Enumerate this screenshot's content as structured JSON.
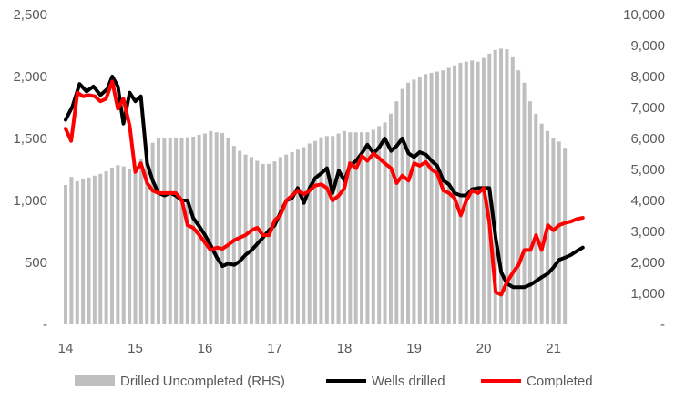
{
  "chart_data": {
    "type": "bar+line",
    "title": "",
    "x_ticks": [
      "14",
      "15",
      "16",
      "17",
      "18",
      "19",
      "20",
      "21"
    ],
    "x_range": [
      2014.0,
      2021.75
    ],
    "y_left": {
      "ticks": [
        "-",
        "500",
        "1,000",
        "1,500",
        "2,000",
        "2,500"
      ],
      "range": [
        0,
        2500
      ]
    },
    "y_right": {
      "ticks": [
        "-",
        "1,000",
        "2,000",
        "3,000",
        "4,000",
        "5,000",
        "6,000",
        "7,000",
        "8,000",
        "9,000",
        "10,000"
      ],
      "range": [
        0,
        10000
      ]
    },
    "grid": false,
    "legend_position": "bottom",
    "series": [
      {
        "name": "Drilled Uncompleted (RHS)",
        "kind": "bar",
        "axis": "right",
        "color": "#bfbfbf",
        "x_start": 2014.0,
        "x_step": 0.0833,
        "values": [
          4500,
          4760,
          4620,
          4700,
          4740,
          4800,
          4860,
          4940,
          5060,
          5140,
          5100,
          5020,
          5100,
          5340,
          5600,
          5860,
          6000,
          6000,
          6000,
          6000,
          6000,
          6040,
          6060,
          6120,
          6160,
          6240,
          6200,
          6180,
          6000,
          5760,
          5600,
          5480,
          5400,
          5280,
          5180,
          5180,
          5260,
          5400,
          5480,
          5560,
          5640,
          5720,
          5840,
          5920,
          6040,
          6080,
          6080,
          6160,
          6240,
          6200,
          6200,
          6200,
          6200,
          6280,
          6400,
          6520,
          6800,
          7200,
          7600,
          7800,
          7900,
          8000,
          8080,
          8120,
          8160,
          8200,
          8280,
          8360,
          8440,
          8480,
          8520,
          8480,
          8600,
          8740,
          8860,
          8900,
          8880,
          8620,
          8200,
          7800,
          7200,
          6800,
          6480,
          6240,
          6000,
          5900,
          5700
        ]
      },
      {
        "name": "Wells drilled",
        "kind": "line",
        "axis": "left",
        "color": "#000000",
        "points": [
          [
            2014.0,
            1650
          ],
          [
            2014.1,
            1760
          ],
          [
            2014.2,
            1940
          ],
          [
            2014.3,
            1880
          ],
          [
            2014.4,
            1920
          ],
          [
            2014.5,
            1850
          ],
          [
            2014.6,
            1900
          ],
          [
            2014.67,
            2000
          ],
          [
            2014.75,
            1920
          ],
          [
            2014.83,
            1620
          ],
          [
            2014.92,
            1870
          ],
          [
            2015.0,
            1800
          ],
          [
            2015.08,
            1840
          ],
          [
            2015.17,
            1300
          ],
          [
            2015.25,
            1160
          ],
          [
            2015.33,
            1060
          ],
          [
            2015.42,
            1040
          ],
          [
            2015.5,
            1060
          ],
          [
            2015.58,
            1040
          ],
          [
            2015.67,
            1000
          ],
          [
            2015.75,
            1000
          ],
          [
            2015.83,
            860
          ],
          [
            2015.92,
            790
          ],
          [
            2016.0,
            720
          ],
          [
            2016.08,
            640
          ],
          [
            2016.17,
            540
          ],
          [
            2016.25,
            470
          ],
          [
            2016.33,
            490
          ],
          [
            2016.42,
            480
          ],
          [
            2016.5,
            510
          ],
          [
            2016.58,
            560
          ],
          [
            2016.67,
            600
          ],
          [
            2016.75,
            650
          ],
          [
            2016.83,
            700
          ],
          [
            2016.92,
            760
          ],
          [
            2017.0,
            800
          ],
          [
            2017.08,
            900
          ],
          [
            2017.17,
            1000
          ],
          [
            2017.25,
            1020
          ],
          [
            2017.33,
            1100
          ],
          [
            2017.42,
            980
          ],
          [
            2017.5,
            1100
          ],
          [
            2017.58,
            1180
          ],
          [
            2017.67,
            1220
          ],
          [
            2017.75,
            1260
          ],
          [
            2017.83,
            1060
          ],
          [
            2017.92,
            1240
          ],
          [
            2018.0,
            1160
          ],
          [
            2018.08,
            1280
          ],
          [
            2018.17,
            1320
          ],
          [
            2018.25,
            1380
          ],
          [
            2018.33,
            1450
          ],
          [
            2018.42,
            1380
          ],
          [
            2018.5,
            1430
          ],
          [
            2018.58,
            1500
          ],
          [
            2018.67,
            1400
          ],
          [
            2018.75,
            1440
          ],
          [
            2018.83,
            1500
          ],
          [
            2018.92,
            1380
          ],
          [
            2019.0,
            1350
          ],
          [
            2019.08,
            1390
          ],
          [
            2019.17,
            1370
          ],
          [
            2019.25,
            1320
          ],
          [
            2019.33,
            1280
          ],
          [
            2019.42,
            1160
          ],
          [
            2019.5,
            1130
          ],
          [
            2019.58,
            1060
          ],
          [
            2019.67,
            1040
          ],
          [
            2019.75,
            1040
          ],
          [
            2019.83,
            1090
          ],
          [
            2019.92,
            1100
          ],
          [
            2020.0,
            1100
          ],
          [
            2020.08,
            1100
          ],
          [
            2020.17,
            700
          ],
          [
            2020.25,
            420
          ],
          [
            2020.33,
            330
          ],
          [
            2020.42,
            300
          ],
          [
            2020.5,
            300
          ],
          [
            2020.58,
            300
          ],
          [
            2020.67,
            320
          ],
          [
            2020.75,
            350
          ],
          [
            2020.83,
            380
          ],
          [
            2020.92,
            410
          ],
          [
            2021.0,
            460
          ],
          [
            2021.08,
            520
          ],
          [
            2021.17,
            540
          ],
          [
            2021.25,
            560
          ],
          [
            2021.33,
            590
          ],
          [
            2021.42,
            620
          ]
        ]
      },
      {
        "name": "Completed",
        "kind": "line",
        "axis": "left",
        "color": "#ff0000",
        "points": [
          [
            2014.0,
            1580
          ],
          [
            2014.08,
            1480
          ],
          [
            2014.17,
            1870
          ],
          [
            2014.25,
            1840
          ],
          [
            2014.33,
            1850
          ],
          [
            2014.42,
            1840
          ],
          [
            2014.5,
            1800
          ],
          [
            2014.58,
            1820
          ],
          [
            2014.67,
            1960
          ],
          [
            2014.75,
            1740
          ],
          [
            2014.83,
            1820
          ],
          [
            2014.92,
            1600
          ],
          [
            2015.0,
            1230
          ],
          [
            2015.08,
            1300
          ],
          [
            2015.17,
            1140
          ],
          [
            2015.25,
            1080
          ],
          [
            2015.33,
            1060
          ],
          [
            2015.42,
            1060
          ],
          [
            2015.5,
            1060
          ],
          [
            2015.58,
            1060
          ],
          [
            2015.67,
            1000
          ],
          [
            2015.75,
            800
          ],
          [
            2015.83,
            780
          ],
          [
            2015.92,
            720
          ],
          [
            2016.0,
            660
          ],
          [
            2016.08,
            600
          ],
          [
            2016.17,
            620
          ],
          [
            2016.25,
            610
          ],
          [
            2016.33,
            640
          ],
          [
            2016.42,
            680
          ],
          [
            2016.5,
            700
          ],
          [
            2016.58,
            720
          ],
          [
            2016.67,
            760
          ],
          [
            2016.75,
            780
          ],
          [
            2016.83,
            720
          ],
          [
            2016.92,
            720
          ],
          [
            2017.0,
            840
          ],
          [
            2017.08,
            880
          ],
          [
            2017.17,
            1000
          ],
          [
            2017.25,
            1040
          ],
          [
            2017.33,
            1080
          ],
          [
            2017.42,
            1050
          ],
          [
            2017.5,
            1080
          ],
          [
            2017.58,
            1120
          ],
          [
            2017.67,
            1130
          ],
          [
            2017.75,
            1100
          ],
          [
            2017.83,
            1000
          ],
          [
            2017.92,
            1040
          ],
          [
            2018.0,
            1100
          ],
          [
            2018.08,
            1300
          ],
          [
            2018.17,
            1260
          ],
          [
            2018.25,
            1360
          ],
          [
            2018.33,
            1320
          ],
          [
            2018.42,
            1380
          ],
          [
            2018.5,
            1340
          ],
          [
            2018.58,
            1300
          ],
          [
            2018.67,
            1260
          ],
          [
            2018.75,
            1140
          ],
          [
            2018.83,
            1200
          ],
          [
            2018.92,
            1160
          ],
          [
            2019.0,
            1300
          ],
          [
            2019.08,
            1280
          ],
          [
            2019.17,
            1310
          ],
          [
            2019.25,
            1250
          ],
          [
            2019.33,
            1220
          ],
          [
            2019.42,
            1080
          ],
          [
            2019.5,
            1060
          ],
          [
            2019.58,
            1020
          ],
          [
            2019.67,
            880
          ],
          [
            2019.75,
            1000
          ],
          [
            2019.83,
            1080
          ],
          [
            2019.92,
            1060
          ],
          [
            2020.0,
            1100
          ],
          [
            2020.08,
            820
          ],
          [
            2020.17,
            260
          ],
          [
            2020.25,
            240
          ],
          [
            2020.33,
            340
          ],
          [
            2020.42,
            420
          ],
          [
            2020.5,
            480
          ],
          [
            2020.58,
            600
          ],
          [
            2020.67,
            600
          ],
          [
            2020.75,
            720
          ],
          [
            2020.83,
            600
          ],
          [
            2020.92,
            800
          ],
          [
            2021.0,
            760
          ],
          [
            2021.08,
            800
          ],
          [
            2021.17,
            820
          ],
          [
            2021.25,
            830
          ],
          [
            2021.33,
            850
          ],
          [
            2021.42,
            860
          ]
        ]
      }
    ]
  }
}
